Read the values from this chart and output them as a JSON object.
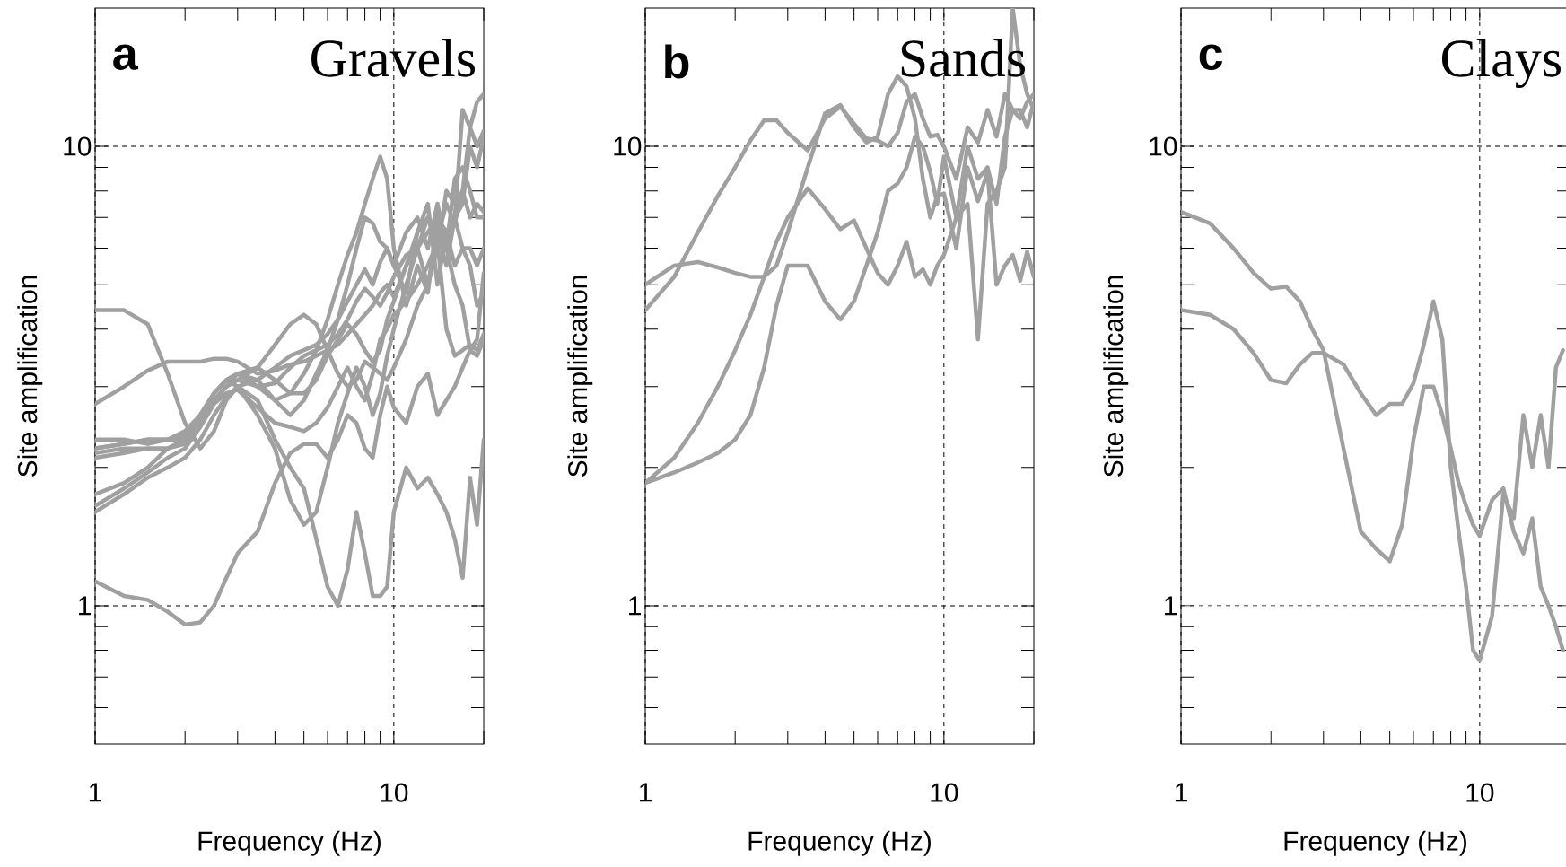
{
  "chart_data": [
    {
      "type": "line",
      "title": "Gravels",
      "annotations": [
        "a"
      ],
      "xlabel": "Frequency (Hz)",
      "ylabel": "Site amplification",
      "log": "xy",
      "grid": true,
      "marker": "none",
      "xlim": [
        1,
        20
      ],
      "ylim": [
        0.5,
        20
      ],
      "xticks": [
        1,
        {
          "value": 2,
          "label": null
        },
        {
          "value": 3,
          "label": null
        },
        {
          "value": 4,
          "label": null
        },
        {
          "value": 5,
          "label": null
        },
        {
          "value": 6,
          "label": null
        },
        {
          "value": 7,
          "label": null
        },
        {
          "value": 8,
          "label": null
        },
        {
          "value": 9,
          "label": null
        },
        10,
        {
          "value": 20,
          "label": null
        }
      ],
      "yticks": [
        {
          "value": 0.6,
          "label": null
        },
        {
          "value": 0.7,
          "label": null
        },
        {
          "value": 0.8,
          "label": null
        },
        {
          "value": 0.9,
          "label": null
        },
        1,
        {
          "value": 2,
          "label": null
        },
        {
          "value": 3,
          "label": null
        },
        {
          "value": 4,
          "label": null
        },
        {
          "value": 5,
          "label": null
        },
        {
          "value": 6,
          "label": null
        },
        {
          "value": 7,
          "label": null
        },
        {
          "value": 8,
          "label": null
        },
        {
          "value": 9,
          "label": null
        },
        10
      ],
      "x": [
        1,
        1.25,
        1.5,
        1.75,
        2,
        2.25,
        2.5,
        2.75,
        3,
        3.5,
        4,
        4.5,
        5,
        5.5,
        6,
        6.5,
        7,
        7.5,
        8,
        8.5,
        9,
        9.5,
        10,
        11,
        12,
        13,
        14,
        15,
        16,
        17,
        18,
        19,
        20
      ],
      "series": [
        {
          "color": "#a0a0a0",
          "values": [
            4.4,
            4.4,
            4.1,
            3.2,
            2.5,
            2.2,
            2.4,
            2.8,
            3.0,
            3.1,
            3.3,
            3.5,
            3.6,
            3.7,
            3.9,
            4.2,
            4.6,
            5.0,
            5.4,
            5.0,
            5.6,
            6.0,
            5.5,
            6.5,
            7.0,
            6.0,
            7.5,
            6.0,
            8.5,
            9.0,
            8.0,
            7.0,
            7.0
          ]
        },
        {
          "color": "#a0a0a0",
          "values": [
            2.75,
            3.0,
            3.25,
            3.4,
            3.4,
            3.4,
            3.45,
            3.45,
            3.4,
            3.2,
            3.25,
            3.35,
            3.4,
            3.5,
            3.6,
            3.7,
            3.9,
            4.1,
            4.3,
            4.5,
            4.8,
            5.0,
            4.7,
            5.5,
            6.0,
            5.0,
            6.5,
            5.5,
            7.0,
            12.0,
            11.0,
            12.5,
            13.0
          ]
        },
        {
          "color": "#a0a0a0",
          "values": [
            2.3,
            2.3,
            2.25,
            2.3,
            2.4,
            2.6,
            2.8,
            3.0,
            3.1,
            3.3,
            3.7,
            4.1,
            4.3,
            4.1,
            3.6,
            3.2,
            3.0,
            3.1,
            3.4,
            3.3,
            3.2,
            3.1,
            3.3,
            3.8,
            4.5,
            5.0,
            6.0,
            6.5,
            7.0,
            7.5,
            10.0,
            9.0,
            10.5
          ]
        },
        {
          "color": "#a0a0a0",
          "values": [
            2.1,
            2.15,
            2.2,
            2.2,
            2.3,
            2.6,
            2.9,
            3.1,
            3.2,
            3.0,
            2.8,
            2.9,
            3.2,
            3.6,
            4.2,
            5.0,
            5.8,
            6.5,
            7.5,
            8.5,
            9.5,
            8.5,
            6.0,
            4.5,
            5.5,
            4.8,
            7.0,
            6.0,
            5.0,
            4.5,
            3.6,
            3.8,
            5.3
          ]
        },
        {
          "color": "#a0a0a0",
          "values": [
            1.75,
            1.85,
            2.0,
            2.2,
            2.3,
            2.6,
            2.9,
            3.1,
            3.2,
            3.1,
            2.8,
            2.6,
            2.8,
            3.2,
            3.6,
            4.2,
            5.0,
            6.0,
            7.0,
            6.8,
            6.2,
            6.0,
            5.5,
            4.8,
            6.5,
            7.5,
            5.0,
            6.5,
            7.0,
            6.0,
            5.5,
            4.5,
            4.8
          ]
        },
        {
          "color": "#a0a0a0",
          "values": [
            2.2,
            2.25,
            2.3,
            2.3,
            2.35,
            2.6,
            2.9,
            3.1,
            3.0,
            2.6,
            2.2,
            1.7,
            1.5,
            1.6,
            2.0,
            2.5,
            2.9,
            3.3,
            3.0,
            2.6,
            2.9,
            3.5,
            4.0,
            5.0,
            6.0,
            6.5,
            7.0,
            6.5,
            5.5,
            6.0,
            6.0,
            5.5,
            6.0
          ]
        },
        {
          "color": "#a0a0a0",
          "values": [
            1.6,
            1.75,
            1.9,
            2.0,
            2.1,
            2.3,
            2.6,
            2.85,
            3.0,
            2.8,
            2.3,
            2.0,
            1.8,
            1.4,
            1.1,
            1.0,
            1.2,
            1.6,
            1.3,
            1.05,
            1.05,
            1.1,
            1.6,
            2.0,
            1.8,
            1.9,
            1.75,
            1.6,
            1.4,
            1.15,
            1.9,
            1.5,
            2.3
          ]
        },
        {
          "color": "#a0a0a0",
          "values": [
            1.13,
            1.05,
            1.03,
            0.97,
            0.91,
            0.92,
            1.0,
            1.15,
            1.3,
            1.45,
            1.85,
            2.15,
            2.25,
            2.25,
            2.1,
            2.3,
            2.6,
            2.5,
            2.2,
            2.1,
            2.6,
            3.0,
            2.7,
            2.5,
            3.0,
            3.2,
            2.6,
            2.8,
            3.0,
            3.3,
            3.6,
            3.5,
            3.8
          ]
        },
        {
          "color": "#a0a0a0",
          "values": [
            2.15,
            2.2,
            2.2,
            2.2,
            2.25,
            2.5,
            2.8,
            3.0,
            3.1,
            3.0,
            3.05,
            3.3,
            3.5,
            3.6,
            3.7,
            3.9,
            4.2,
            4.6,
            4.9,
            4.7,
            4.5,
            4.8,
            5.2,
            5.8,
            6.0,
            7.0,
            6.3,
            7.5,
            6.8,
            8.0,
            11.0,
            10.0,
            10.8
          ]
        },
        {
          "color": "#a0a0a0",
          "values": [
            1.65,
            1.8,
            1.95,
            2.1,
            2.2,
            2.45,
            2.75,
            2.9,
            2.95,
            2.7,
            2.5,
            2.45,
            2.4,
            2.5,
            2.7,
            3.0,
            3.3,
            3.0,
            2.8,
            3.2,
            3.8,
            4.0,
            4.3,
            4.6,
            5.0,
            5.5,
            6.2,
            4.0,
            3.5,
            3.6,
            3.7,
            3.6,
            3.9
          ]
        },
        {
          "color": "#a0a0a0",
          "values": [
            2.2,
            2.25,
            2.3,
            2.3,
            2.3,
            2.5,
            2.8,
            3.0,
            3.2,
            3.3,
            3.1,
            2.9,
            2.9,
            3.1,
            3.5,
            3.8,
            4.1,
            3.9,
            3.6,
            3.4,
            3.6,
            4.2,
            4.6,
            5.5,
            6.5,
            7.0,
            6.0,
            8.0,
            7.5,
            8.0,
            7.0,
            7.5,
            7.2
          ]
        }
      ]
    },
    {
      "type": "line",
      "title": "Sands",
      "annotations": [
        "b"
      ],
      "xlabel": "Frequency (Hz)",
      "ylabel": "Site amplification",
      "log": "xy",
      "grid": true,
      "marker": "none",
      "xlim": [
        1,
        20
      ],
      "ylim": [
        0.5,
        20
      ],
      "xticks": [
        1,
        {
          "value": 2,
          "label": null
        },
        {
          "value": 3,
          "label": null
        },
        {
          "value": 4,
          "label": null
        },
        {
          "value": 5,
          "label": null
        },
        {
          "value": 6,
          "label": null
        },
        {
          "value": 7,
          "label": null
        },
        {
          "value": 8,
          "label": null
        },
        {
          "value": 9,
          "label": null
        },
        10,
        {
          "value": 20,
          "label": null
        }
      ],
      "yticks": [
        {
          "value": 0.6,
          "label": null
        },
        {
          "value": 0.7,
          "label": null
        },
        {
          "value": 0.8,
          "label": null
        },
        {
          "value": 0.9,
          "label": null
        },
        1,
        {
          "value": 2,
          "label": null
        },
        {
          "value": 3,
          "label": null
        },
        {
          "value": 4,
          "label": null
        },
        {
          "value": 5,
          "label": null
        },
        {
          "value": 6,
          "label": null
        },
        {
          "value": 7,
          "label": null
        },
        {
          "value": 8,
          "label": null
        },
        {
          "value": 9,
          "label": null
        },
        10
      ],
      "x": [
        1,
        1.25,
        1.5,
        1.75,
        2,
        2.25,
        2.5,
        2.75,
        3,
        3.5,
        4,
        4.5,
        5,
        5.5,
        6,
        6.5,
        7,
        7.5,
        8,
        8.5,
        9,
        9.5,
        10,
        11,
        12,
        13,
        14,
        15,
        16,
        17,
        18,
        19,
        20
      ],
      "series": [
        {
          "color": "#a0a0a0",
          "values": [
            4.4,
            5.2,
            6.5,
            7.8,
            9.0,
            10.3,
            11.4,
            11.4,
            10.7,
            9.8,
            11.5,
            12.2,
            11.2,
            10.4,
            10.3,
            10.0,
            10.7,
            12.5,
            13.0,
            11.5,
            10.5,
            10.6,
            10.0,
            8.5,
            11.0,
            10.2,
            12.0,
            10.5,
            13.0,
            12.0,
            11.5,
            12.5,
            13.0
          ]
        },
        {
          "color": "#a0a0a0",
          "values": [
            5.0,
            5.5,
            5.6,
            5.45,
            5.3,
            5.2,
            5.2,
            5.5,
            6.5,
            9.0,
            11.8,
            12.3,
            11.0,
            10.2,
            10.5,
            13.0,
            14.2,
            13.5,
            11.5,
            8.5,
            7.0,
            7.8,
            7.9,
            6.0,
            9.0,
            7.6,
            8.8,
            5.0,
            5.5,
            5.8,
            5.1,
            5.9,
            5.2
          ]
        },
        {
          "color": "#a0a0a0",
          "values": [
            1.85,
            2.1,
            2.5,
            3.0,
            3.6,
            4.3,
            5.2,
            6.2,
            7.0,
            8.1,
            7.3,
            6.6,
            6.9,
            6.0,
            5.3,
            5.0,
            5.5,
            6.2,
            5.2,
            5.4,
            5.0,
            5.5,
            5.8,
            7.0,
            7.5,
            3.8,
            7.5,
            8.0,
            9.0,
            20,
            15.0,
            13.0,
            12.0
          ]
        },
        {
          "color": "#a0a0a0",
          "values": [
            1.85,
            1.95,
            2.05,
            2.15,
            2.3,
            2.6,
            3.3,
            4.5,
            5.5,
            5.5,
            4.6,
            4.2,
            4.6,
            5.5,
            6.5,
            8.0,
            8.3,
            9.0,
            10.5,
            10.0,
            8.8,
            7.5,
            9.5,
            7.0,
            10.0,
            8.5,
            9.0,
            7.5,
            10.5,
            12.0,
            12.0,
            11.0,
            12.5
          ]
        }
      ]
    },
    {
      "type": "line",
      "title": "Clays",
      "annotations": [
        "c"
      ],
      "xlabel": "Frequency (Hz)",
      "ylabel": "Site amplification",
      "log": "xy",
      "grid": true,
      "marker": "none",
      "xlim": [
        1,
        20
      ],
      "ylim": [
        0.5,
        20
      ],
      "xticks": [
        1,
        {
          "value": 2,
          "label": null
        },
        {
          "value": 3,
          "label": null
        },
        {
          "value": 4,
          "label": null
        },
        {
          "value": 5,
          "label": null
        },
        {
          "value": 6,
          "label": null
        },
        {
          "value": 7,
          "label": null
        },
        {
          "value": 8,
          "label": null
        },
        {
          "value": 9,
          "label": null
        },
        10,
        {
          "value": 20,
          "label": null
        }
      ],
      "yticks": [
        {
          "value": 0.6,
          "label": null
        },
        {
          "value": 0.7,
          "label": null
        },
        {
          "value": 0.8,
          "label": null
        },
        {
          "value": 0.9,
          "label": null
        },
        1,
        {
          "value": 2,
          "label": null
        },
        {
          "value": 3,
          "label": null
        },
        {
          "value": 4,
          "label": null
        },
        {
          "value": 5,
          "label": null
        },
        {
          "value": 6,
          "label": null
        },
        {
          "value": 7,
          "label": null
        },
        {
          "value": 8,
          "label": null
        },
        {
          "value": 9,
          "label": null
        },
        10
      ],
      "x": [
        1,
        1.25,
        1.5,
        1.75,
        2,
        2.25,
        2.5,
        2.75,
        3,
        3.5,
        4,
        4.5,
        5,
        5.5,
        6,
        6.5,
        7,
        7.5,
        8,
        8.5,
        9,
        9.5,
        10,
        11,
        12,
        13,
        14,
        15,
        16,
        17,
        18,
        19
      ],
      "series": [
        {
          "color": "#a0a0a0",
          "values": [
            7.2,
            6.8,
            6.0,
            5.3,
            4.9,
            4.95,
            4.6,
            4.0,
            3.6,
            2.2,
            1.45,
            1.33,
            1.25,
            1.5,
            2.3,
            3.0,
            3.0,
            2.6,
            2.2,
            1.85,
            1.65,
            1.5,
            1.42,
            1.7,
            1.8,
            1.45,
            1.3,
            1.55,
            1.1,
            1.0,
            0.9,
            0.8
          ]
        },
        {
          "color": "#a0a0a0",
          "values": [
            4.4,
            4.3,
            4.0,
            3.55,
            3.1,
            3.05,
            3.35,
            3.55,
            3.55,
            3.35,
            2.9,
            2.6,
            2.75,
            2.75,
            3.05,
            3.7,
            4.6,
            3.8,
            2.0,
            1.45,
            1.1,
            0.8,
            0.76,
            0.95,
            1.75,
            1.55,
            2.6,
            2.0,
            2.6,
            2.0,
            3.3,
            3.6
          ]
        }
      ]
    }
  ]
}
